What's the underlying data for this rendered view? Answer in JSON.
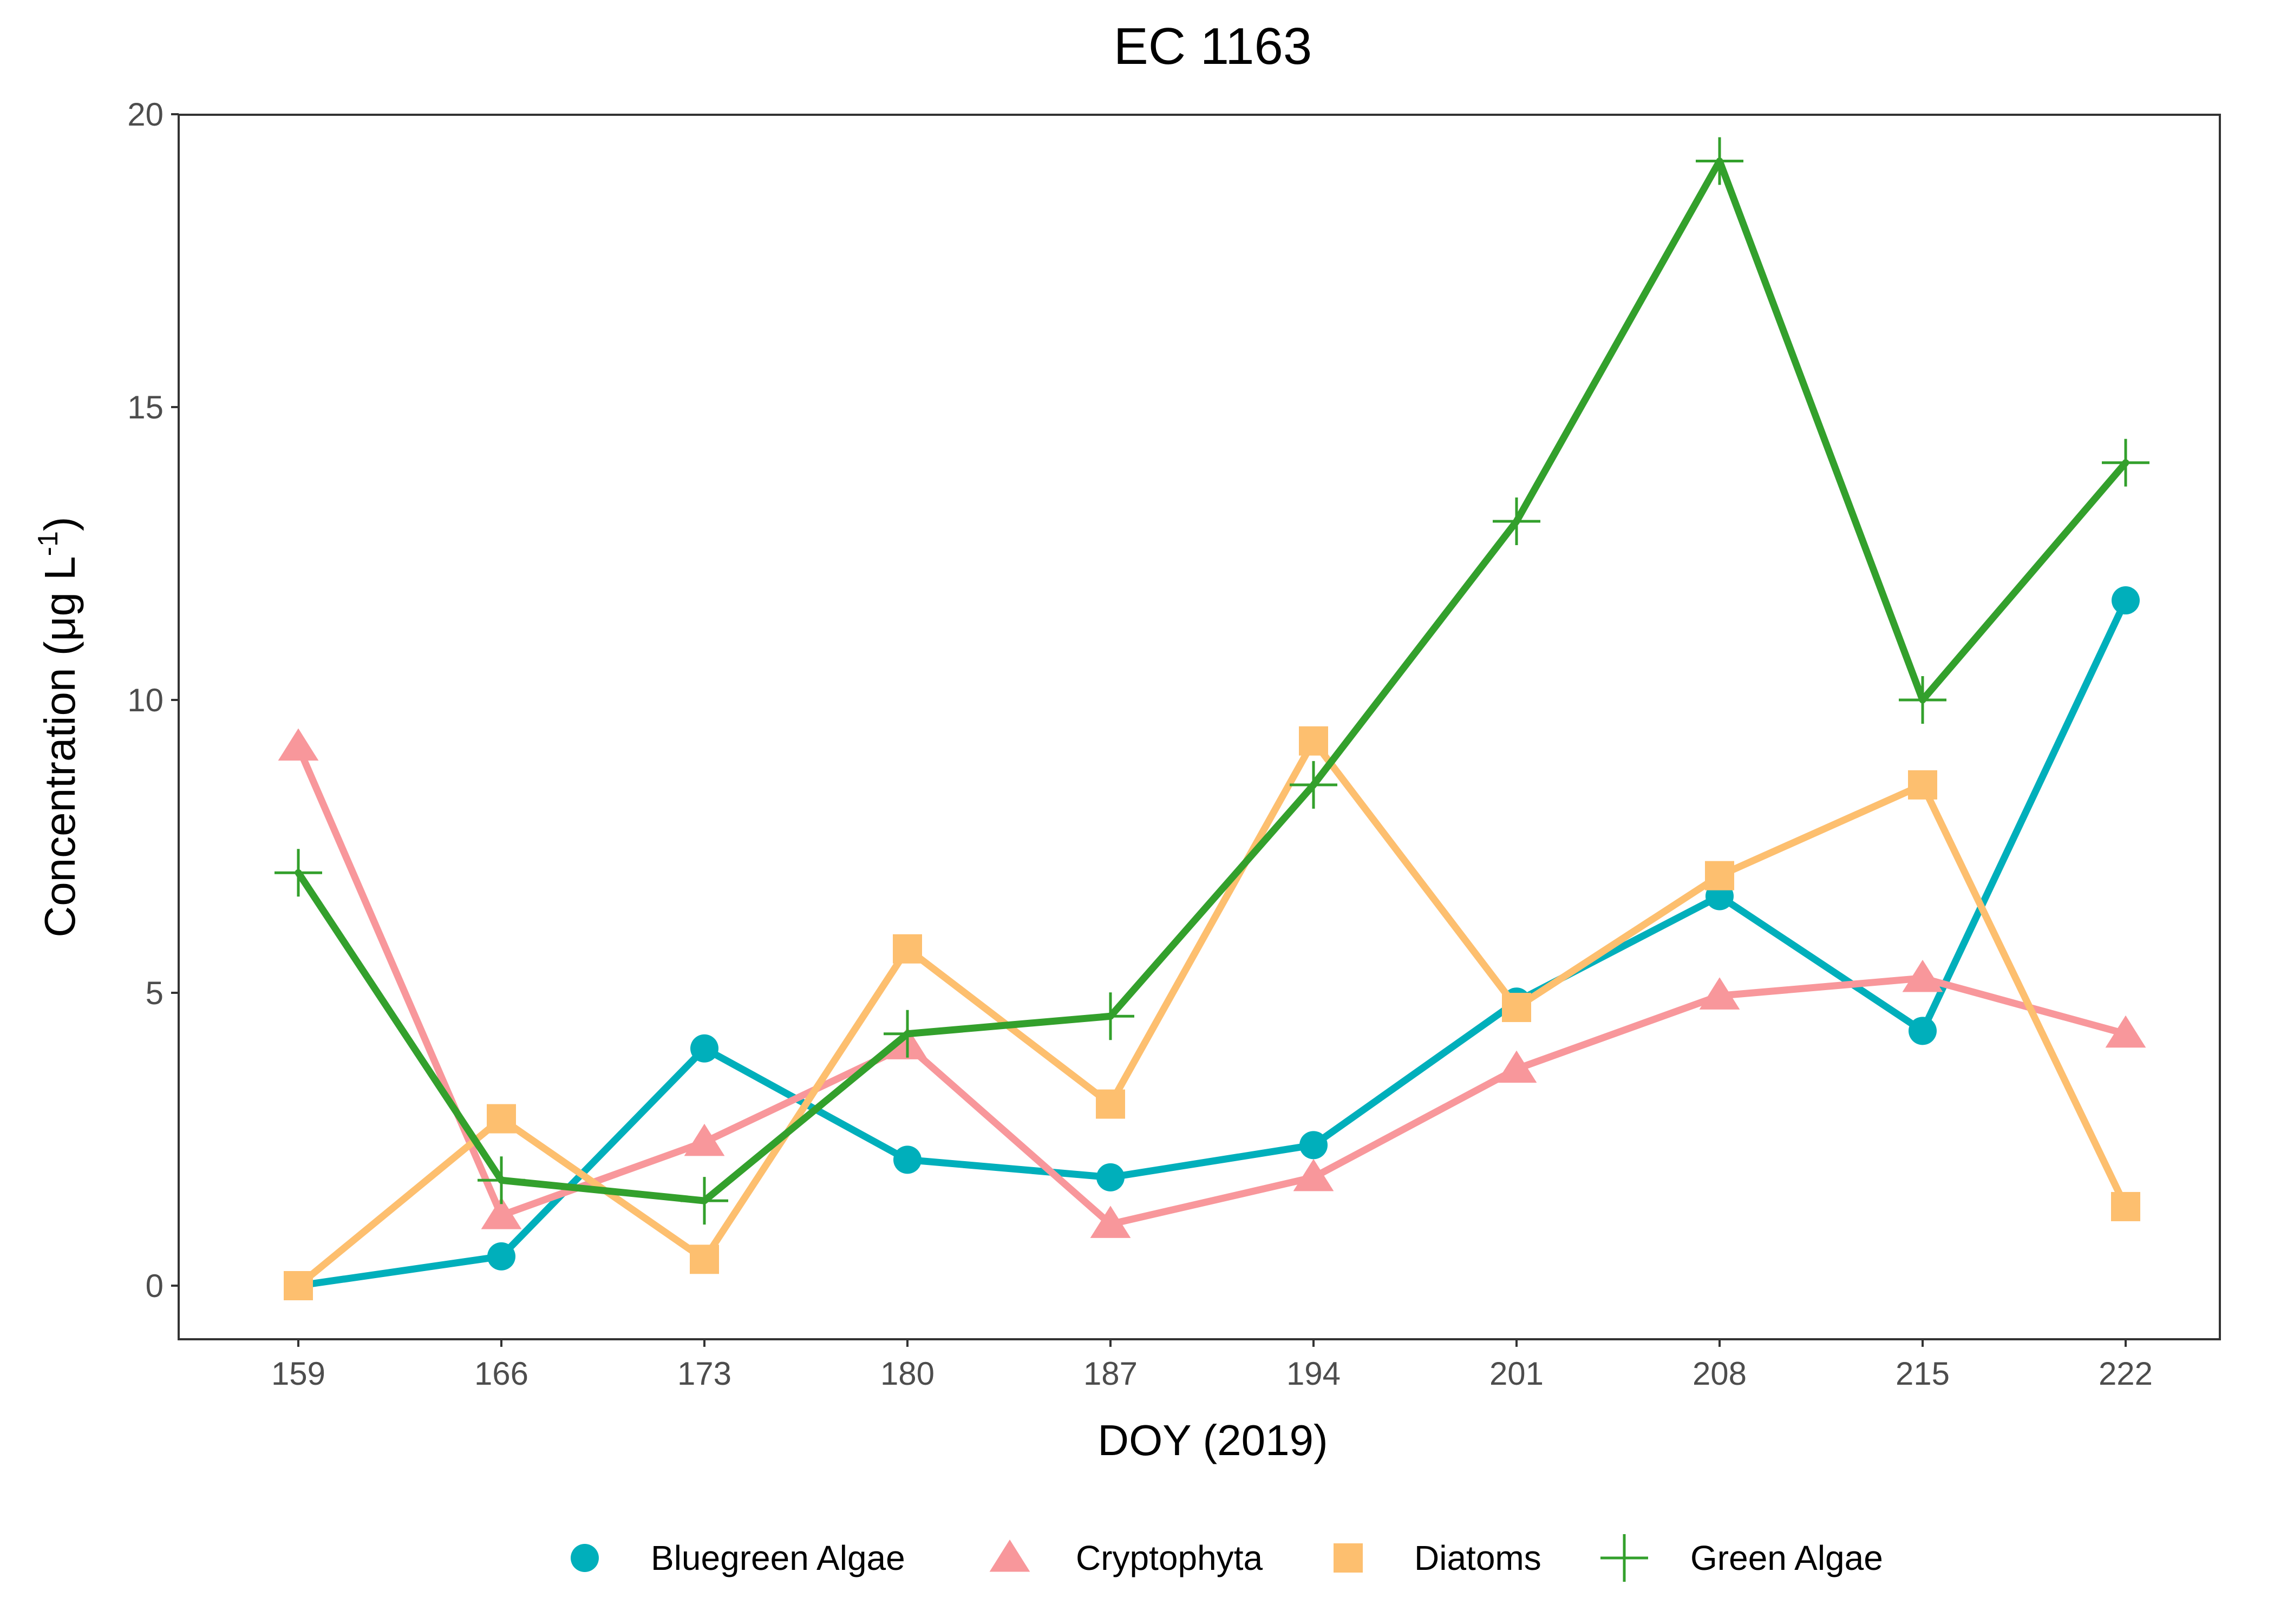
{
  "chart_data": {
    "type": "line",
    "title": "EC 1163",
    "xlabel": "DOY (2019)",
    "ylabel": "Concentration (μg L",
    "ylabel_superscript": "-1",
    "ylabel_close": ")",
    "ylim": [
      -1,
      20
    ],
    "yticks": [
      0,
      5,
      10,
      15,
      20
    ],
    "x": [
      159,
      166,
      173,
      180,
      187,
      194,
      201,
      208,
      215,
      222
    ],
    "legend_position": "bottom",
    "series": [
      {
        "name": "Bluegreen Algae",
        "color": "#00AFBB",
        "marker": "circle",
        "values": [
          0.0,
          0.5,
          4.05,
          2.15,
          1.85,
          2.4,
          4.85,
          6.65,
          4.35,
          11.7
        ]
      },
      {
        "name": "Cryptophyta",
        "color": "#F8979B",
        "marker": "triangle",
        "values": [
          9.2,
          1.2,
          2.45,
          4.1,
          1.05,
          1.85,
          3.7,
          4.95,
          5.25,
          4.3
        ]
      },
      {
        "name": "Diatoms",
        "color": "#FDBF6F",
        "marker": "square",
        "values": [
          0.0,
          2.85,
          0.45,
          5.75,
          3.1,
          9.3,
          4.75,
          7.0,
          8.55,
          1.35
        ]
      },
      {
        "name": "Green Algae",
        "color": "#33A02C",
        "marker": "plus",
        "values": [
          7.05,
          1.8,
          1.45,
          4.3,
          4.6,
          8.55,
          13.05,
          19.2,
          10.0,
          14.05
        ]
      }
    ]
  }
}
